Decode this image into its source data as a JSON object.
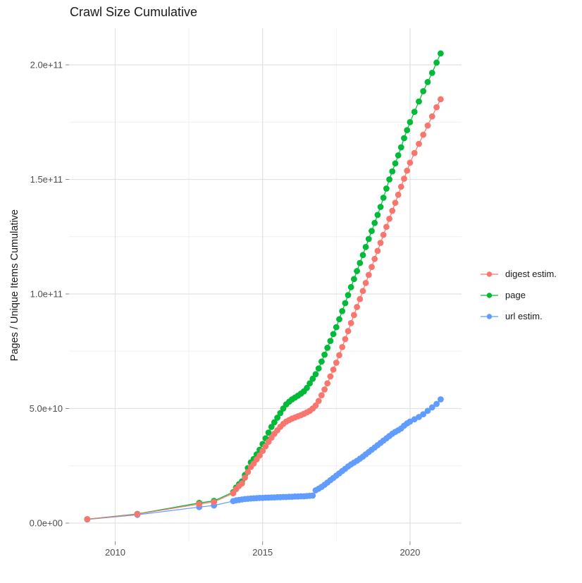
{
  "chart_data": {
    "type": "line",
    "title": "Crawl Size Cumulative",
    "xlabel": "",
    "ylabel": "Pages / Unique Items Cumulative",
    "legend_position": "right",
    "grid": true,
    "point_shape": "filled-circle",
    "x_axis": {
      "major_ticks": [
        2010,
        2015,
        2020
      ],
      "major_tick_labels": [
        "2010",
        "2015",
        "2020"
      ],
      "minor_ticks": [
        2012.5,
        2017.5
      ],
      "range": [
        2008.45,
        2021.65
      ]
    },
    "y_axis": {
      "major_ticks_e9": [
        0,
        50,
        100,
        150,
        200
      ],
      "major_tick_labels": [
        "0.0e+00",
        "5.0e+10",
        "1.0e+11",
        "1.5e+11",
        "2.0e+11"
      ],
      "minor_ticks_e9": [
        25,
        75,
        125,
        175
      ],
      "range_e9": [
        -10,
        216
      ],
      "unit_note": "values stored in billions (1e9 items)"
    },
    "series": [
      {
        "name": "digest estim.",
        "color": "#F8766D",
        "points_year_billions": [
          [
            2009.05,
            1.7
          ],
          [
            2010.75,
            3.9
          ],
          [
            2012.85,
            8.3
          ],
          [
            2013.35,
            9.2
          ],
          [
            2014.0,
            13.0
          ],
          [
            2014.1,
            14.8
          ],
          [
            2014.2,
            16.2
          ],
          [
            2014.3,
            17.3
          ],
          [
            2014.4,
            19.8
          ],
          [
            2014.5,
            22.3
          ],
          [
            2014.6,
            24.5
          ],
          [
            2014.7,
            26.0
          ],
          [
            2014.8,
            27.8
          ],
          [
            2014.9,
            29.5
          ],
          [
            2015.0,
            31.5
          ],
          [
            2015.1,
            33.5
          ],
          [
            2015.2,
            35.5
          ],
          [
            2015.3,
            37.3
          ],
          [
            2015.4,
            39.0
          ],
          [
            2015.5,
            40.5
          ],
          [
            2015.6,
            42.0
          ],
          [
            2015.7,
            43.3
          ],
          [
            2015.8,
            44.3
          ],
          [
            2015.9,
            45.0
          ],
          [
            2016.0,
            45.6
          ],
          [
            2016.1,
            46.1
          ],
          [
            2016.2,
            46.6
          ],
          [
            2016.3,
            47.1
          ],
          [
            2016.4,
            47.7
          ],
          [
            2016.5,
            48.3
          ],
          [
            2016.6,
            49.0
          ],
          [
            2016.7,
            50.0
          ],
          [
            2016.8,
            51.3
          ],
          [
            2016.9,
            53.3
          ],
          [
            2017.0,
            55.8
          ],
          [
            2017.1,
            58.3
          ],
          [
            2017.2,
            61.0
          ],
          [
            2017.3,
            64.0
          ],
          [
            2017.4,
            67.0
          ],
          [
            2017.5,
            70.0
          ],
          [
            2017.6,
            73.3
          ],
          [
            2017.7,
            76.8
          ],
          [
            2017.8,
            80.3
          ],
          [
            2017.9,
            83.8
          ],
          [
            2018.0,
            87.3
          ],
          [
            2018.1,
            90.8
          ],
          [
            2018.2,
            94.3
          ],
          [
            2018.3,
            97.8
          ],
          [
            2018.4,
            101.3
          ],
          [
            2018.5,
            104.8
          ],
          [
            2018.6,
            108.3
          ],
          [
            2018.7,
            111.8
          ],
          [
            2018.8,
            115.3
          ],
          [
            2018.9,
            118.8
          ],
          [
            2019.0,
            122.3
          ],
          [
            2019.1,
            125.8
          ],
          [
            2019.2,
            129.3
          ],
          [
            2019.3,
            132.8
          ],
          [
            2019.4,
            136.3
          ],
          [
            2019.5,
            139.8
          ],
          [
            2019.6,
            143.3
          ],
          [
            2019.7,
            146.8
          ],
          [
            2019.8,
            150.3
          ],
          [
            2019.9,
            153.8
          ],
          [
            2020.0,
            157.3
          ],
          [
            2020.15,
            161.5
          ],
          [
            2020.3,
            165.5
          ],
          [
            2020.45,
            169.5
          ],
          [
            2020.6,
            173.5
          ],
          [
            2020.75,
            177.5
          ],
          [
            2020.9,
            181.5
          ],
          [
            2021.04,
            185.0
          ]
        ]
      },
      {
        "name": "page",
        "color": "#00BA38",
        "points_year_billions": [
          [
            2009.05,
            1.7
          ],
          [
            2010.75,
            4.0
          ],
          [
            2012.85,
            8.8
          ],
          [
            2013.35,
            9.7
          ],
          [
            2014.0,
            13.5
          ],
          [
            2014.1,
            15.5
          ],
          [
            2014.2,
            17.0
          ],
          [
            2014.3,
            18.2
          ],
          [
            2014.4,
            21.0
          ],
          [
            2014.5,
            24.0
          ],
          [
            2014.6,
            26.5
          ],
          [
            2014.7,
            28.0
          ],
          [
            2014.8,
            30.0
          ],
          [
            2014.9,
            32.0
          ],
          [
            2015.0,
            34.5
          ],
          [
            2015.1,
            37.0
          ],
          [
            2015.2,
            39.5
          ],
          [
            2015.3,
            42.0
          ],
          [
            2015.4,
            44.0
          ],
          [
            2015.5,
            46.0
          ],
          [
            2015.6,
            48.0
          ],
          [
            2015.7,
            50.0
          ],
          [
            2015.8,
            51.8
          ],
          [
            2015.9,
            53.0
          ],
          [
            2016.0,
            54.0
          ],
          [
            2016.1,
            54.8
          ],
          [
            2016.2,
            55.6
          ],
          [
            2016.3,
            56.5
          ],
          [
            2016.4,
            57.5
          ],
          [
            2016.5,
            59.0
          ],
          [
            2016.6,
            61.0
          ],
          [
            2016.7,
            63.0
          ],
          [
            2016.8,
            65.0
          ],
          [
            2016.9,
            67.5
          ],
          [
            2017.0,
            70.5
          ],
          [
            2017.1,
            73.5
          ],
          [
            2017.2,
            76.5
          ],
          [
            2017.3,
            79.5
          ],
          [
            2017.4,
            82.5
          ],
          [
            2017.5,
            85.5
          ],
          [
            2017.6,
            89.0
          ],
          [
            2017.7,
            92.5
          ],
          [
            2017.8,
            96.0
          ],
          [
            2017.9,
            99.5
          ],
          [
            2018.0,
            103.0
          ],
          [
            2018.1,
            106.5
          ],
          [
            2018.2,
            110.0
          ],
          [
            2018.3,
            113.5
          ],
          [
            2018.4,
            117.0
          ],
          [
            2018.5,
            120.5
          ],
          [
            2018.6,
            124.0
          ],
          [
            2018.7,
            127.5
          ],
          [
            2018.8,
            131.0
          ],
          [
            2018.9,
            134.5
          ],
          [
            2019.0,
            138.0
          ],
          [
            2019.1,
            142.0
          ],
          [
            2019.2,
            146.0
          ],
          [
            2019.3,
            150.0
          ],
          [
            2019.4,
            153.5
          ],
          [
            2019.5,
            157.0
          ],
          [
            2019.6,
            160.5
          ],
          [
            2019.7,
            164.0
          ],
          [
            2019.8,
            168.0
          ],
          [
            2019.9,
            171.5
          ],
          [
            2020.0,
            175.0
          ],
          [
            2020.15,
            179.5
          ],
          [
            2020.3,
            184.0
          ],
          [
            2020.45,
            188.5
          ],
          [
            2020.6,
            192.5
          ],
          [
            2020.75,
            196.5
          ],
          [
            2020.9,
            201.0
          ],
          [
            2021.04,
            205.0
          ]
        ]
      },
      {
        "name": "url estim.",
        "color": "#619CFF",
        "points_year_billions": [
          [
            2009.05,
            1.6
          ],
          [
            2010.75,
            3.6
          ],
          [
            2012.85,
            7.0
          ],
          [
            2013.35,
            7.7
          ],
          [
            2014.0,
            9.6
          ],
          [
            2014.1,
            9.9
          ],
          [
            2014.2,
            10.1
          ],
          [
            2014.3,
            10.3
          ],
          [
            2014.4,
            10.5
          ],
          [
            2014.5,
            10.6
          ],
          [
            2014.6,
            10.7
          ],
          [
            2014.7,
            10.8
          ],
          [
            2014.8,
            10.9
          ],
          [
            2014.9,
            11.0
          ],
          [
            2015.0,
            11.0
          ],
          [
            2015.1,
            11.1
          ],
          [
            2015.2,
            11.1
          ],
          [
            2015.3,
            11.2
          ],
          [
            2015.4,
            11.2
          ],
          [
            2015.5,
            11.3
          ],
          [
            2015.6,
            11.3
          ],
          [
            2015.7,
            11.4
          ],
          [
            2015.8,
            11.4
          ],
          [
            2015.9,
            11.5
          ],
          [
            2016.0,
            11.5
          ],
          [
            2016.1,
            11.6
          ],
          [
            2016.2,
            11.6
          ],
          [
            2016.3,
            11.7
          ],
          [
            2016.4,
            11.7
          ],
          [
            2016.5,
            11.8
          ],
          [
            2016.6,
            11.9
          ],
          [
            2016.7,
            12.0
          ],
          [
            2016.8,
            14.3
          ],
          [
            2016.9,
            15.0
          ],
          [
            2017.0,
            15.8
          ],
          [
            2017.1,
            16.7
          ],
          [
            2017.2,
            17.7
          ],
          [
            2017.3,
            18.7
          ],
          [
            2017.4,
            19.7
          ],
          [
            2017.5,
            20.7
          ],
          [
            2017.6,
            21.7
          ],
          [
            2017.7,
            22.7
          ],
          [
            2017.8,
            23.7
          ],
          [
            2017.9,
            24.7
          ],
          [
            2018.0,
            25.6
          ],
          [
            2018.1,
            26.4
          ],
          [
            2018.2,
            27.2
          ],
          [
            2018.3,
            28.1
          ],
          [
            2018.4,
            29.0
          ],
          [
            2018.5,
            30.0
          ],
          [
            2018.6,
            31.0
          ],
          [
            2018.7,
            32.0
          ],
          [
            2018.8,
            33.0
          ],
          [
            2018.9,
            34.0
          ],
          [
            2019.0,
            35.0
          ],
          [
            2019.1,
            36.0
          ],
          [
            2019.2,
            37.0
          ],
          [
            2019.3,
            38.0
          ],
          [
            2019.4,
            39.0
          ],
          [
            2019.5,
            39.8
          ],
          [
            2019.6,
            40.5
          ],
          [
            2019.7,
            41.3
          ],
          [
            2019.8,
            42.5
          ],
          [
            2019.9,
            43.5
          ],
          [
            2020.0,
            44.3
          ],
          [
            2020.15,
            45.3
          ],
          [
            2020.3,
            46.3
          ],
          [
            2020.45,
            47.5
          ],
          [
            2020.6,
            49.0
          ],
          [
            2020.75,
            50.5
          ],
          [
            2020.9,
            52.0
          ],
          [
            2021.04,
            54.0
          ]
        ]
      }
    ],
    "style": {
      "background": "#ffffff",
      "grid_major_color": "#e2e2e2",
      "grid_minor_color": "#f0f0f0",
      "tick_color": "#8a8a8a",
      "tick_label_color": "#4d4d4d",
      "title_color": "#1a1a1a",
      "point_radius": 4.4,
      "line_width": 1.2
    }
  }
}
